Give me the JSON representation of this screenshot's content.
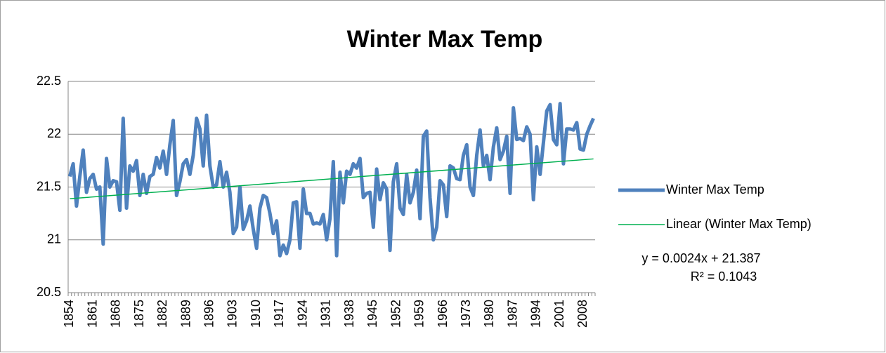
{
  "chart_data": {
    "type": "line",
    "title": "Winter Max Temp",
    "categories": [
      "1854",
      null,
      null,
      null,
      null,
      null,
      null,
      "1861",
      null,
      null,
      null,
      null,
      null,
      null,
      "1868",
      null,
      null,
      null,
      null,
      null,
      null,
      "1875",
      null,
      null,
      null,
      null,
      null,
      null,
      "1882",
      null,
      null,
      null,
      null,
      null,
      null,
      "1889",
      null,
      null,
      null,
      null,
      null,
      null,
      "1896",
      null,
      null,
      null,
      null,
      null,
      null,
      "1903",
      null,
      null,
      null,
      null,
      null,
      null,
      "1910",
      null,
      null,
      null,
      null,
      null,
      null,
      "1917",
      null,
      null,
      null,
      null,
      null,
      null,
      "1924",
      null,
      null,
      null,
      null,
      null,
      null,
      "1931",
      null,
      null,
      null,
      null,
      null,
      null,
      "1938",
      null,
      null,
      null,
      null,
      null,
      null,
      "1945",
      null,
      null,
      null,
      null,
      null,
      null,
      "1952",
      null,
      null,
      null,
      null,
      null,
      null,
      "1959",
      null,
      null,
      null,
      null,
      null,
      null,
      "1966",
      null,
      null,
      null,
      null,
      null,
      null,
      "1973",
      null,
      null,
      null,
      null,
      null,
      null,
      "1980",
      null,
      null,
      null,
      null,
      null,
      null,
      "1987",
      null,
      null,
      null,
      null,
      null,
      null,
      "1994",
      null,
      null,
      null,
      null,
      null,
      null,
      "2001",
      null,
      null,
      null,
      null,
      null,
      null,
      "2008",
      null,
      null,
      null
    ],
    "series": [
      {
        "name": "Winter Max Temp",
        "color": "#4f81bd",
        "values": [
          21.6,
          21.72,
          21.32,
          21.6,
          21.85,
          21.45,
          21.58,
          21.62,
          21.48,
          21.5,
          20.96,
          21.77,
          21.5,
          21.56,
          21.55,
          21.28,
          22.15,
          21.3,
          21.7,
          21.65,
          21.75,
          21.42,
          21.62,
          21.44,
          21.6,
          21.62,
          21.78,
          21.68,
          21.84,
          21.62,
          21.9,
          22.13,
          21.42,
          21.55,
          21.72,
          21.76,
          21.62,
          21.8,
          22.15,
          22.05,
          21.7,
          22.18,
          21.7,
          21.5,
          21.52,
          21.74,
          21.5,
          21.64,
          21.45,
          21.06,
          21.12,
          21.5,
          21.1,
          21.18,
          21.32,
          21.1,
          20.92,
          21.3,
          21.42,
          21.4,
          21.25,
          21.06,
          21.18,
          20.85,
          20.95,
          20.87,
          21.0,
          21.35,
          21.36,
          20.92,
          21.48,
          21.25,
          21.25,
          21.15,
          21.16,
          21.15,
          21.24,
          21.0,
          21.2,
          21.74,
          20.85,
          21.64,
          21.35,
          21.65,
          21.62,
          21.72,
          21.68,
          21.77,
          21.4,
          21.44,
          21.45,
          21.12,
          21.67,
          21.38,
          21.54,
          21.48,
          20.9,
          21.55,
          21.72,
          21.3,
          21.24,
          21.62,
          21.35,
          21.45,
          21.66,
          21.2,
          21.98,
          22.03,
          21.4,
          21.0,
          21.12,
          21.56,
          21.52,
          21.22,
          21.7,
          21.68,
          21.58,
          21.57,
          21.8,
          21.9,
          21.5,
          21.42,
          21.8,
          22.04,
          21.7,
          21.8,
          21.57,
          21.88,
          22.06,
          21.76,
          21.84,
          21.98,
          21.44,
          22.25,
          21.95,
          21.96,
          21.94,
          22.07,
          22.0,
          21.38,
          21.88,
          21.62,
          21.92,
          22.22,
          22.28,
          21.95,
          21.9,
          22.29,
          21.72,
          22.05,
          22.05,
          22.04,
          22.11,
          21.86,
          21.85,
          22.0,
          22.08,
          22.15
        ]
      }
    ],
    "trendline": {
      "name": "Linear (Winter Max Temp)",
      "color": "#00b050",
      "slope": 0.0024,
      "intercept": 21.387,
      "equation": "y = 0.0024x + 21.387",
      "r_squared": "R² = 0.1043"
    },
    "ylim": [
      20.5,
      22.5
    ],
    "yticks": [
      20.5,
      21,
      21.5,
      22,
      22.5
    ],
    "grid": true,
    "legend": "right"
  }
}
